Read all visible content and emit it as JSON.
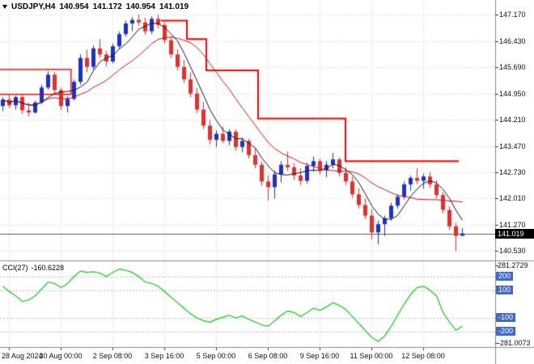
{
  "chart_data": {
    "type": "candlestick",
    "title": {
      "symbol_period": "USDJPY,H4",
      "open": "140.954",
      "high": "141.172",
      "low": "140.954",
      "close": "141.019"
    },
    "price_axis": {
      "labels": [
        "147.170",
        "146.430",
        "145.690",
        "144.950",
        "144.210",
        "143.470",
        "142.730",
        "142.010",
        "141.270",
        "140.530"
      ],
      "current_label": "141.019",
      "current_value": 141.019,
      "visible_top": 147.53,
      "visible_bottom": 140.3
    },
    "time_axis": {
      "labels": [
        "28 Aug 2024",
        "30 Aug 00:00",
        "2 Sep 08:00",
        "3 Sep 16:00",
        "5 Sep 00:00",
        "6 Sep 08:00",
        "9 Sep 16:00",
        "11 Sep 00:00",
        "12 Sep 08:00"
      ],
      "label_indices": [
        1,
        9,
        17,
        25,
        33,
        41,
        49,
        57,
        65
      ]
    },
    "candles": [
      [
        144.6,
        144.85,
        144.45,
        144.78
      ],
      [
        144.78,
        144.95,
        144.55,
        144.62
      ],
      [
        144.62,
        144.9,
        144.5,
        144.85
      ],
      [
        144.85,
        144.92,
        144.38,
        144.48
      ],
      [
        144.48,
        144.7,
        144.3,
        144.42
      ],
      [
        144.42,
        144.75,
        144.38,
        144.7
      ],
      [
        144.7,
        145.2,
        144.65,
        145.12
      ],
      [
        145.12,
        145.58,
        145.05,
        145.48
      ],
      [
        145.48,
        145.55,
        144.95,
        145.05
      ],
      [
        145.05,
        145.12,
        144.48,
        144.6
      ],
      [
        144.6,
        144.88,
        144.42,
        144.8
      ],
      [
        144.8,
        145.35,
        144.75,
        145.28
      ],
      [
        145.28,
        146.05,
        145.2,
        145.95
      ],
      [
        145.95,
        146.18,
        145.55,
        145.7
      ],
      [
        145.7,
        146.3,
        145.62,
        146.22
      ],
      [
        146.22,
        146.48,
        145.95,
        146.05
      ],
      [
        146.05,
        146.15,
        145.72,
        145.85
      ],
      [
        145.85,
        146.35,
        145.8,
        146.28
      ],
      [
        146.28,
        146.7,
        146.2,
        146.62
      ],
      [
        146.62,
        147.0,
        146.55,
        146.92
      ],
      [
        146.92,
        147.1,
        146.7,
        147.02
      ],
      [
        147.02,
        147.17,
        146.85,
        146.95
      ],
      [
        146.95,
        147.08,
        146.6,
        146.7
      ],
      [
        146.7,
        147.12,
        146.62,
        147.05
      ],
      [
        147.05,
        147.17,
        146.78,
        146.88
      ],
      [
        146.88,
        146.95,
        146.35,
        146.45
      ],
      [
        146.45,
        146.55,
        145.95,
        146.05
      ],
      [
        146.05,
        146.2,
        145.6,
        145.7
      ],
      [
        145.7,
        145.9,
        145.25,
        145.35
      ],
      [
        145.35,
        145.55,
        144.85,
        144.95
      ],
      [
        144.95,
        145.1,
        144.4,
        144.5
      ],
      [
        144.5,
        144.72,
        143.95,
        144.05
      ],
      [
        144.05,
        144.2,
        143.52,
        143.65
      ],
      [
        143.65,
        143.92,
        143.45,
        143.82
      ],
      [
        143.82,
        144.02,
        143.55,
        143.62
      ],
      [
        143.62,
        143.95,
        143.5,
        143.88
      ],
      [
        143.88,
        143.95,
        143.35,
        143.45
      ],
      [
        143.45,
        143.72,
        143.3,
        143.62
      ],
      [
        143.62,
        143.68,
        143.12,
        143.22
      ],
      [
        143.22,
        143.4,
        142.85,
        142.95
      ],
      [
        142.95,
        143.05,
        142.35,
        142.48
      ],
      [
        142.48,
        142.65,
        141.95,
        142.32
      ],
      [
        142.32,
        142.78,
        142.0,
        142.68
      ],
      [
        142.68,
        143.05,
        142.45,
        142.95
      ],
      [
        142.95,
        143.32,
        142.78,
        142.88
      ],
      [
        142.88,
        143.0,
        142.52,
        142.65
      ],
      [
        142.65,
        142.85,
        142.38,
        142.5
      ],
      [
        142.5,
        143.0,
        142.42,
        142.92
      ],
      [
        142.92,
        143.18,
        142.75,
        143.05
      ],
      [
        143.05,
        143.12,
        142.68,
        142.8
      ],
      [
        142.8,
        143.05,
        142.6,
        142.95
      ],
      [
        142.95,
        143.28,
        142.85,
        143.1
      ],
      [
        143.1,
        143.15,
        142.62,
        142.72
      ],
      [
        142.72,
        142.88,
        142.38,
        142.48
      ],
      [
        142.48,
        142.62,
        142.02,
        142.12
      ],
      [
        142.12,
        142.3,
        141.72,
        141.82
      ],
      [
        141.82,
        142.0,
        141.42,
        141.52
      ],
      [
        141.52,
        141.7,
        140.85,
        141.05
      ],
      [
        141.05,
        141.38,
        140.71,
        141.28
      ],
      [
        141.28,
        141.52,
        140.95,
        141.45
      ],
      [
        141.45,
        141.88,
        141.38,
        141.8
      ],
      [
        141.8,
        142.12,
        141.72,
        142.05
      ],
      [
        142.05,
        142.48,
        141.98,
        142.4
      ],
      [
        142.4,
        142.65,
        142.22,
        142.58
      ],
      [
        142.58,
        142.85,
        142.4,
        142.5
      ],
      [
        142.5,
        142.7,
        142.28,
        142.62
      ],
      [
        142.62,
        142.75,
        142.3,
        142.4
      ],
      [
        142.4,
        142.52,
        142.0,
        142.1
      ],
      [
        142.1,
        142.18,
        141.58,
        141.68
      ],
      [
        141.68,
        141.78,
        141.12,
        141.22
      ],
      [
        141.22,
        141.32,
        140.53,
        140.95
      ],
      [
        140.954,
        141.172,
        140.954,
        141.019
      ]
    ],
    "overlays": {
      "ma_fast_period": 5,
      "ma_slow_period": 13,
      "box": {
        "from": -0.5,
        "to": 10.6,
        "top": 145.63,
        "bottom": 144.93
      },
      "trail_segments": [
        {
          "from": 24.5,
          "to": 28.5,
          "price": 147.0
        },
        {
          "from": 28.5,
          "to": 31.5,
          "price": 146.48
        },
        {
          "from": 31.5,
          "to": 39.5,
          "price": 145.6
        },
        {
          "from": 39.5,
          "to": 53.0,
          "price": 144.25
        },
        {
          "from": 53.0,
          "to": 70.5,
          "price": 143.05
        }
      ]
    },
    "cci": {
      "name": "CCI(27)",
      "value_label": "-160.6228",
      "period": 27,
      "current": -160.6228,
      "scale_max": 281.2729,
      "scale_min": -281.0073,
      "levels": [
        200,
        100,
        -100,
        -200
      ],
      "axis_labels": [
        {
          "text": "281.2729",
          "value": 281.2729,
          "badge": false
        },
        {
          "text": "200",
          "value": 200,
          "badge": true
        },
        {
          "text": "100",
          "value": 100,
          "badge": true
        },
        {
          "text": "-100",
          "value": -100,
          "badge": true
        },
        {
          "text": "-200",
          "value": -200,
          "badge": true
        },
        {
          "text": "-281.0073",
          "value": -281.0073,
          "badge": false
        }
      ],
      "values": [
        130,
        90,
        60,
        20,
        30,
        60,
        110,
        160,
        150,
        120,
        150,
        200,
        240,
        230,
        235,
        225,
        200,
        230,
        255,
        245,
        230,
        200,
        160,
        150,
        130,
        90,
        50,
        10,
        -30,
        -70,
        -100,
        -120,
        -130,
        -110,
        -95,
        -80,
        -100,
        -85,
        -110,
        -130,
        -150,
        -160,
        -120,
        -80,
        -50,
        -60,
        -90,
        -60,
        -30,
        -45,
        -20,
        10,
        -10,
        -40,
        -90,
        -140,
        -190,
        -240,
        -270,
        -230,
        -160,
        -80,
        0,
        70,
        120,
        130,
        100,
        60,
        -60,
        -130,
        -190,
        -160.6228
      ]
    },
    "colors": {
      "bull": "#1c2fd0",
      "bear": "#ee2b2b",
      "ma_fast": "#151515",
      "ma_slow": "#cc1212",
      "trail": "#ff0000",
      "cci_line": "#32cd32",
      "grid": "#cfcfcf",
      "level_line": "#bdbdbd",
      "bid_line": "#5a5a5a",
      "badge_bg": "#000000",
      "badge_text": "#ffffff",
      "level_badge_bg": "#4169c8",
      "axis_text": "#111111",
      "separator": "#8a8a8a"
    }
  }
}
